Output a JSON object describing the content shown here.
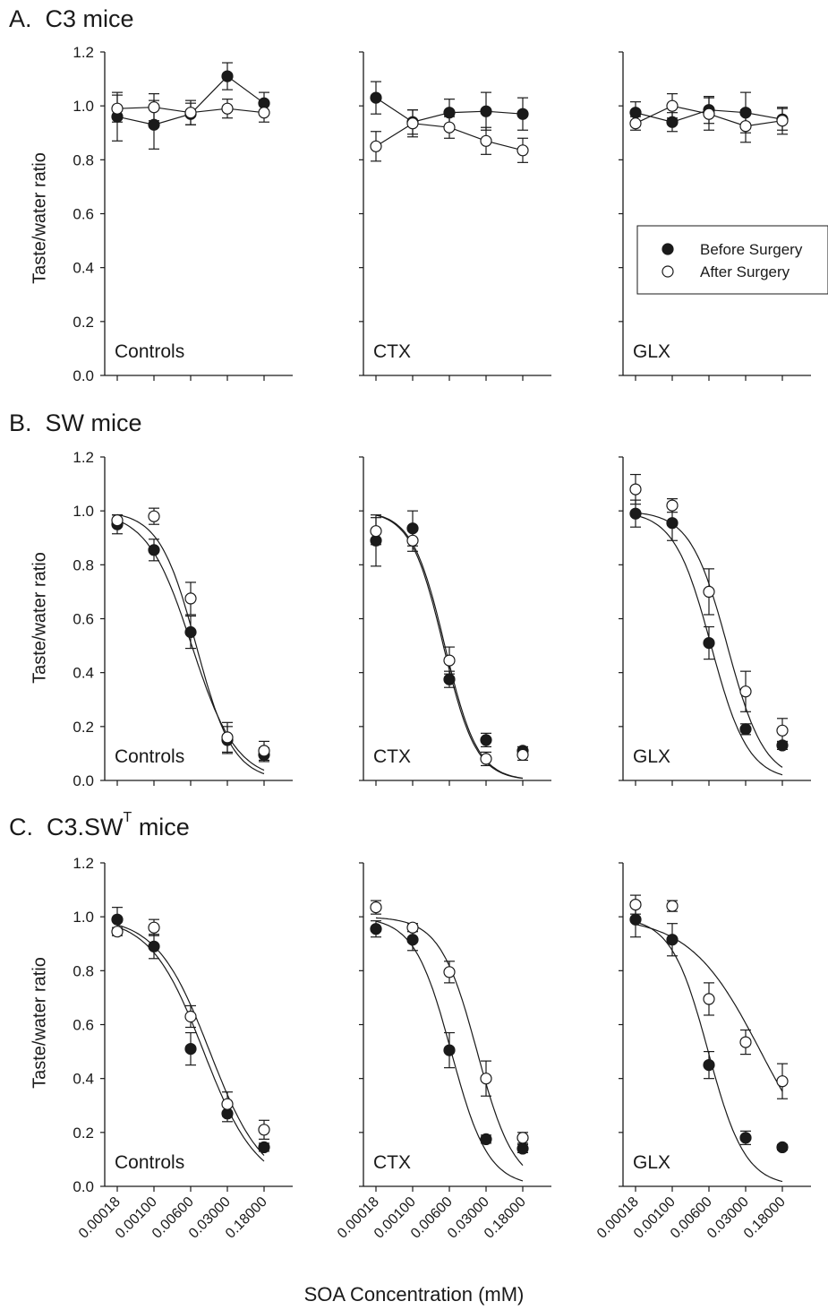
{
  "x_axis_label": "SOA Concentration (mM)",
  "y_axis_label": "Taste/water ratio",
  "legend": {
    "before": "Before Surgery",
    "after": "After Surgery",
    "placement": "right"
  },
  "rows": [
    {
      "letter": "A.",
      "name": "C3 mice",
      "superscript": ""
    },
    {
      "letter": "B.",
      "name": "SW mice",
      "superscript": ""
    },
    {
      "letter": "C.",
      "name": "C3.SW",
      "superscript": "T",
      "suffix": " mice"
    }
  ],
  "chart_data": [
    {
      "type": "scatter",
      "row": 0,
      "group": "Controls",
      "categories": [
        "0.00018",
        "0.00100",
        "0.00600",
        "0.03000",
        "0.18000"
      ],
      "ylim": [
        0,
        1.2
      ],
      "yticks": [
        0,
        0.2,
        0.4,
        0.6,
        0.8,
        1.0,
        1.2
      ],
      "series": [
        {
          "name": "Before Surgery",
          "fill": "#1a1a1a",
          "values": [
            0.96,
            0.93,
            0.97,
            1.11,
            1.01
          ],
          "errors": [
            0.09,
            0.09,
            0.04,
            0.05,
            0.04
          ],
          "connected": true
        },
        {
          "name": "After Surgery",
          "fill": "#ffffff",
          "values": [
            0.99,
            0.995,
            0.975,
            0.99,
            0.975
          ],
          "errors": [
            0.05,
            0.05,
            0.045,
            0.035,
            0.035
          ],
          "connected": true
        }
      ]
    },
    {
      "type": "scatter",
      "row": 0,
      "group": "CTX",
      "categories": [
        "0.00018",
        "0.00100",
        "0.00600",
        "0.03000",
        "0.18000"
      ],
      "ylim": [
        0,
        1.2
      ],
      "series": [
        {
          "name": "Before Surgery",
          "fill": "#1a1a1a",
          "values": [
            1.03,
            0.94,
            0.975,
            0.98,
            0.97
          ],
          "errors": [
            0.06,
            0.045,
            0.05,
            0.07,
            0.06
          ],
          "connected": true
        },
        {
          "name": "After Surgery",
          "fill": "#ffffff",
          "values": [
            0.85,
            0.935,
            0.92,
            0.87,
            0.835
          ],
          "errors": [
            0.055,
            0.05,
            0.04,
            0.05,
            0.045
          ],
          "connected": true
        }
      ]
    },
    {
      "type": "scatter",
      "row": 0,
      "group": "GLX",
      "categories": [
        "0.00018",
        "0.00100",
        "0.00600",
        "0.03000",
        "0.18000"
      ],
      "ylim": [
        0,
        1.2
      ],
      "series": [
        {
          "name": "Before Surgery",
          "fill": "#1a1a1a",
          "values": [
            0.975,
            0.94,
            0.985,
            0.975,
            0.95
          ],
          "errors": [
            0.04,
            0.035,
            0.05,
            0.075,
            0.04
          ],
          "connected": true
        },
        {
          "name": "After Surgery",
          "fill": "#ffffff",
          "values": [
            0.935,
            1.0,
            0.97,
            0.925,
            0.945
          ],
          "errors": [
            0.025,
            0.045,
            0.06,
            0.06,
            0.05
          ],
          "connected": true
        }
      ]
    },
    {
      "type": "scatter",
      "row": 1,
      "group": "Controls",
      "categories": [
        "0.00018",
        "0.00100",
        "0.00600",
        "0.03000",
        "0.18000"
      ],
      "ylim": [
        0,
        1.2
      ],
      "series": [
        {
          "name": "Before Surgery",
          "fill": "#1a1a1a",
          "values": [
            0.95,
            0.855,
            0.55,
            0.15,
            0.095
          ],
          "errors": [
            0.035,
            0.04,
            0.06,
            0.05,
            0.025
          ],
          "connected": false,
          "fit": {
            "ic50": 0.006,
            "slope": 0.95
          }
        },
        {
          "name": "After Surgery",
          "fill": "#ffffff",
          "values": [
            0.965,
            0.98,
            0.675,
            0.16,
            0.11
          ],
          "errors": [
            0.02,
            0.03,
            0.06,
            0.055,
            0.035
          ],
          "connected": false,
          "fit": {
            "ic50": 0.0074,
            "slope": 1.15
          }
        }
      ]
    },
    {
      "type": "scatter",
      "row": 1,
      "group": "CTX",
      "categories": [
        "0.00018",
        "0.00100",
        "0.00600",
        "0.03000",
        "0.18000"
      ],
      "ylim": [
        0,
        1.2
      ],
      "series": [
        {
          "name": "Before Surgery",
          "fill": "#1a1a1a",
          "values": [
            0.89,
            0.935,
            0.375,
            0.15,
            0.11
          ],
          "errors": [
            0.095,
            0.065,
            0.03,
            0.025,
            0.015
          ],
          "connected": false,
          "fit": {
            "ic50": 0.0043,
            "slope": 1.3
          }
        },
        {
          "name": "After Surgery",
          "fill": "#ffffff",
          "values": [
            0.925,
            0.89,
            0.445,
            0.08,
            0.095
          ],
          "errors": [
            0.05,
            0.04,
            0.05,
            0.025,
            0.02
          ],
          "connected": false,
          "fit": {
            "ic50": 0.0046,
            "slope": 1.3
          }
        }
      ]
    },
    {
      "type": "scatter",
      "row": 1,
      "group": "GLX",
      "categories": [
        "0.00018",
        "0.00100",
        "0.00600",
        "0.03000",
        "0.18000"
      ],
      "ylim": [
        0,
        1.2
      ],
      "series": [
        {
          "name": "Before Surgery",
          "fill": "#1a1a1a",
          "values": [
            0.99,
            0.955,
            0.51,
            0.19,
            0.13
          ],
          "errors": [
            0.05,
            0.065,
            0.06,
            0.02,
            0.015
          ],
          "connected": false,
          "fit": {
            "ic50": 0.0063,
            "slope": 1.15
          }
        },
        {
          "name": "After Surgery",
          "fill": "#ffffff",
          "values": [
            1.08,
            1.02,
            0.7,
            0.33,
            0.185
          ],
          "errors": [
            0.055,
            0.025,
            0.085,
            0.075,
            0.045
          ],
          "connected": false,
          "fit": {
            "ic50": 0.0135,
            "slope": 1.15
          }
        }
      ]
    },
    {
      "type": "scatter",
      "row": 2,
      "group": "Controls",
      "categories": [
        "0.00018",
        "0.00100",
        "0.00600",
        "0.03000",
        "0.18000"
      ],
      "ylim": [
        0,
        1.2
      ],
      "series": [
        {
          "name": "Before Surgery",
          "fill": "#1a1a1a",
          "values": [
            0.99,
            0.89,
            0.51,
            0.27,
            0.145
          ],
          "errors": [
            0.045,
            0.045,
            0.06,
            0.03,
            0.015
          ],
          "connected": false,
          "fit": {
            "ic50": 0.0105,
            "slope": 0.8
          }
        },
        {
          "name": "After Surgery",
          "fill": "#ffffff",
          "values": [
            0.945,
            0.96,
            0.63,
            0.305,
            0.21
          ],
          "errors": [
            0.015,
            0.03,
            0.04,
            0.045,
            0.035
          ],
          "connected": false,
          "fit": {
            "ic50": 0.014,
            "slope": 0.8
          }
        }
      ]
    },
    {
      "type": "scatter",
      "row": 2,
      "group": "CTX",
      "categories": [
        "0.00018",
        "0.00100",
        "0.00600",
        "0.03000",
        "0.18000"
      ],
      "ylim": [
        0,
        1.2
      ],
      "series": [
        {
          "name": "Before Surgery",
          "fill": "#1a1a1a",
          "values": [
            0.955,
            0.915,
            0.505,
            0.175,
            0.14
          ],
          "errors": [
            0.03,
            0.04,
            0.065,
            0.015,
            0.015
          ],
          "connected": false,
          "fit": {
            "ic50": 0.0062,
            "slope": 1.15
          }
        },
        {
          "name": "After Surgery",
          "fill": "#ffffff",
          "values": [
            1.035,
            0.96,
            0.795,
            0.4,
            0.18
          ],
          "errors": [
            0.025,
            0.015,
            0.04,
            0.065,
            0.02
          ],
          "connected": false,
          "fit": {
            "ic50": 0.021,
            "slope": 1.15
          }
        }
      ]
    },
    {
      "type": "scatter",
      "row": 2,
      "group": "GLX",
      "categories": [
        "0.00018",
        "0.00100",
        "0.00600",
        "0.03000",
        "0.18000"
      ],
      "ylim": [
        0,
        1.2
      ],
      "series": [
        {
          "name": "Before Surgery",
          "fill": "#1a1a1a",
          "values": [
            0.99,
            0.915,
            0.45,
            0.18,
            0.145
          ],
          "errors": [
            0.065,
            0.06,
            0.05,
            0.025,
            0.01
          ],
          "connected": false,
          "fit": {
            "ic50": 0.0055,
            "slope": 1.15
          }
        },
        {
          "name": "After Surgery",
          "fill": "#ffffff",
          "values": [
            1.045,
            1.04,
            0.695,
            0.535,
            0.39
          ],
          "errors": [
            0.035,
            0.02,
            0.06,
            0.045,
            0.065
          ],
          "connected": false,
          "fit": {
            "ic50": 0.065,
            "slope": 0.6
          }
        }
      ]
    }
  ]
}
